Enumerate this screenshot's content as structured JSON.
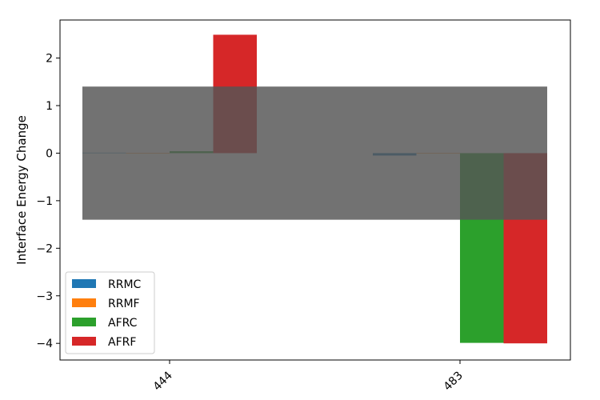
{
  "chart_data": {
    "type": "bar",
    "title": "",
    "xlabel": "",
    "ylabel": "Interface Energy Change",
    "categories": [
      "444",
      "483"
    ],
    "series": [
      {
        "name": "RRMC",
        "color": "#1f77b4",
        "values": [
          0.01,
          -0.05
        ]
      },
      {
        "name": "RRMF",
        "color": "#ff7f0e",
        "values": [
          0.0,
          0.0
        ]
      },
      {
        "name": "AFRC",
        "color": "#2ca02c",
        "values": [
          0.04,
          -3.99
        ]
      },
      {
        "name": "AFRF",
        "color": "#d62728",
        "values": [
          2.49,
          -4.0
        ]
      }
    ],
    "ylim": [
      -4.35,
      2.8
    ],
    "yticks": [
      -4,
      -3,
      -2,
      -1,
      0,
      1,
      2
    ],
    "band": {
      "y_from": -1.4,
      "y_to": 1.4,
      "color": "#555555",
      "opacity": 0.83
    },
    "legend_position": "lower-left",
    "grid": false
  }
}
